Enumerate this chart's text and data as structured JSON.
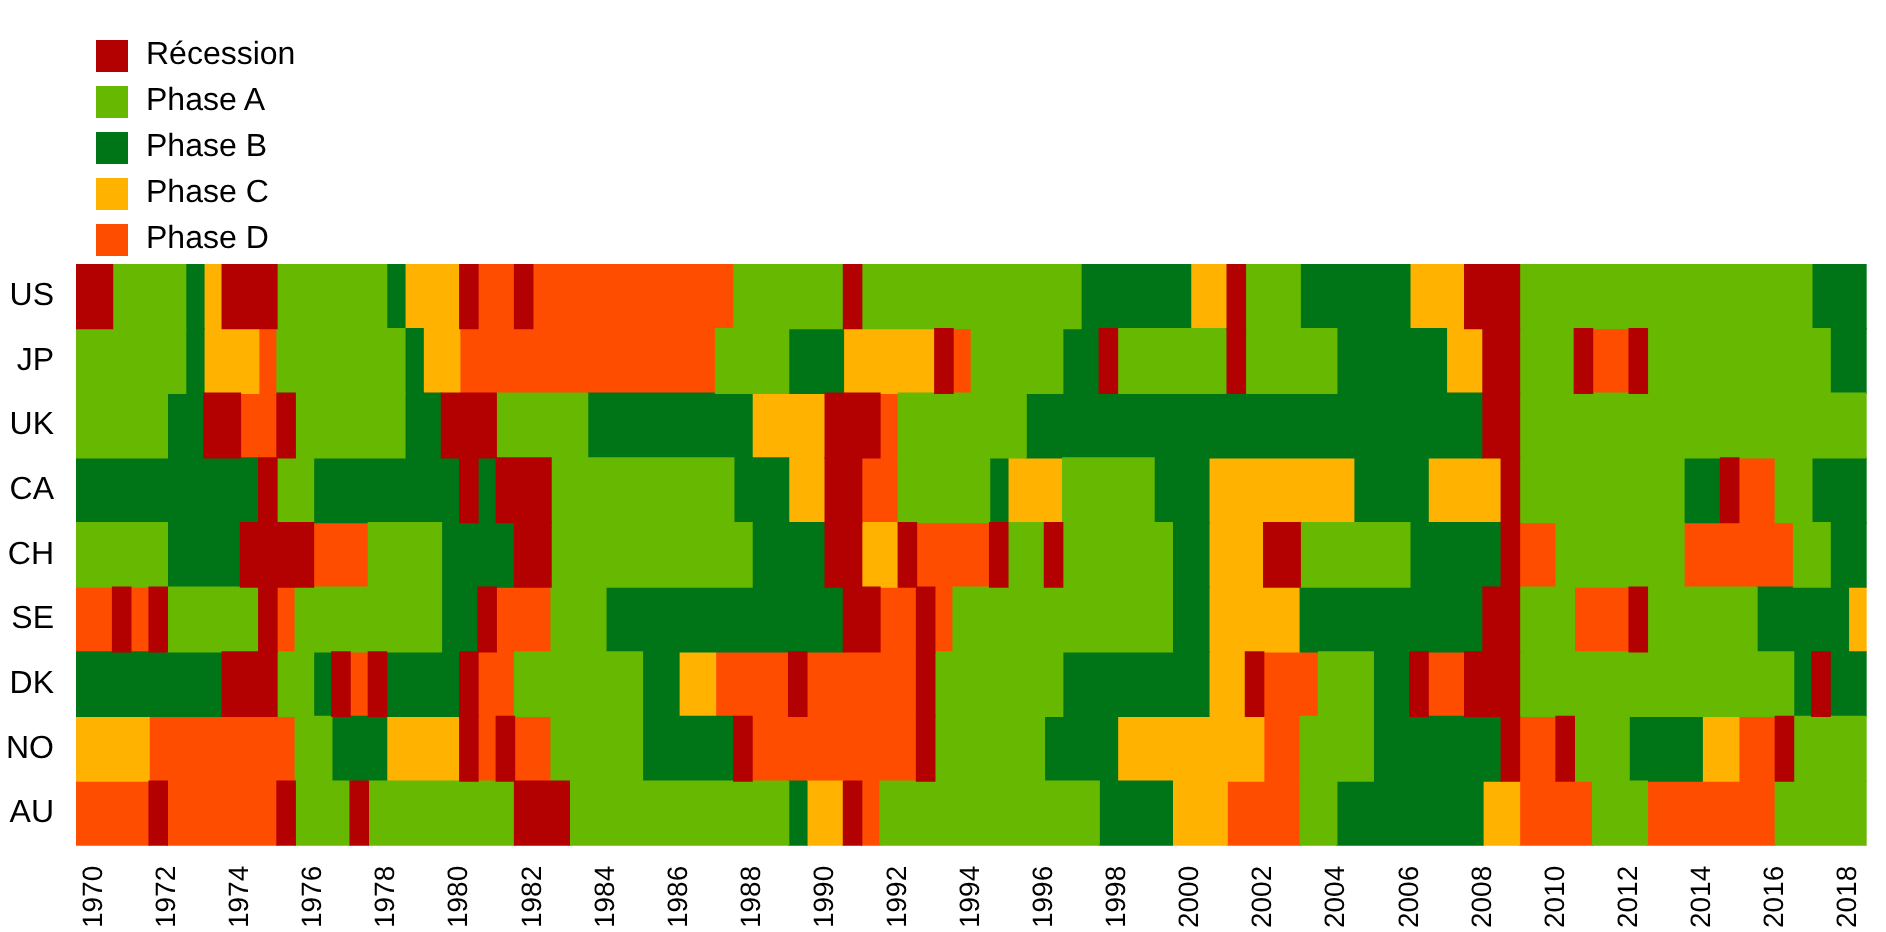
{
  "chart_data": {
    "type": "bar",
    "orientation": "horizontal",
    "legend": "top left",
    "categories": [
      "US",
      "JP",
      "UK",
      "CA",
      "CH",
      "SE",
      "DK",
      "NO",
      "AU"
    ],
    "xlim": [
      1969.5,
      2018.5
    ],
    "xticks": [
      1970,
      1972,
      1974,
      1976,
      1978,
      1980,
      1982,
      1984,
      1986,
      1988,
      1990,
      1992,
      1994,
      1996,
      1998,
      2000,
      2002,
      2004,
      2006,
      2008,
      2010,
      2012,
      2014,
      2016,
      2018
    ],
    "series": [
      {
        "name": "Récession",
        "color": "#b30000",
        "base": [
          1969.5,
          1993,
          1973,
          1974.5,
          1974,
          1970.5,
          1973.5,
          1980,
          1971.5
        ],
        "values": [
          1,
          0.5,
          1,
          0.5,
          2,
          0.5,
          1.5,
          0.5,
          0.5
        ]
      },
      {
        "color": "#b30000",
        "base": [
          1973.5,
          1997.5,
          1975,
          1980,
          1981.5,
          1971.5,
          1976.5,
          1981,
          1975
        ],
        "values": [
          1.5,
          0.5,
          0.5,
          0.5,
          1,
          0.5,
          0.5,
          0.5,
          0.5
        ]
      },
      {
        "color": "#b30000",
        "base": [
          1980,
          2001,
          1979.5,
          1981,
          1990,
          1974.5,
          1977.5,
          1987.5,
          1977
        ],
        "values": [
          0.5,
          0.5,
          1.5,
          1.5,
          1,
          0.5,
          0.5,
          0.5,
          0.5
        ]
      },
      {
        "color": "#b30000",
        "base": [
          1981.5,
          2008,
          1990,
          1990,
          1992,
          1980.5,
          1980,
          1992.5,
          1981.5
        ],
        "values": [
          0.5,
          1,
          1.5,
          1,
          0.5,
          0.5,
          0.5,
          0.5,
          1.5
        ]
      },
      {
        "color": "#b30000",
        "base": [
          1990.5,
          2010.5,
          2008,
          2008.5,
          1994.5,
          1990.5,
          1989,
          2008.5,
          1990.5
        ],
        "values": [
          0.5,
          0.5,
          1,
          0.5,
          0.5,
          1,
          0.5,
          0.5,
          0.5
        ]
      },
      {
        "color": "#b30000",
        "base": [
          2001,
          2012,
          null,
          2014.5,
          1996,
          1992.5,
          1992.5,
          2010,
          null
        ],
        "values": [
          0.5,
          0.5,
          null,
          0.5,
          0.5,
          0.5,
          0.5,
          0.5,
          null
        ]
      },
      {
        "color": "#b30000",
        "base": [
          2007.5,
          null,
          null,
          null,
          2002,
          2008,
          2001.5,
          2016,
          null
        ],
        "values": [
          1.5,
          null,
          null,
          null,
          1,
          1,
          0.5,
          0.5,
          null
        ]
      },
      {
        "color": "#b30000",
        "base": [
          null,
          null,
          null,
          null,
          2008.5,
          2012,
          2006,
          null,
          null
        ],
        "values": [
          null,
          null,
          null,
          null,
          0.5,
          0.5,
          0.5,
          null,
          null
        ]
      },
      {
        "color": "#b30000",
        "base": [
          null,
          null,
          null,
          null,
          null,
          null,
          2007.5,
          null,
          null
        ],
        "values": [
          null,
          null,
          null,
          null,
          null,
          null,
          1.5,
          null,
          null
        ]
      },
      {
        "color": "#b30000",
        "base": [
          null,
          null,
          null,
          null,
          null,
          null,
          2017,
          null,
          null
        ],
        "values": [
          null,
          null,
          null,
          null,
          null,
          null,
          0.5,
          null,
          null
        ]
      },
      {
        "name": "Phase A",
        "color": "#66b800",
        "base": [
          1970.5,
          1969.5,
          1969.5,
          1975,
          1969.5,
          1972,
          1975,
          1975.5,
          1975.5
        ],
        "values": [
          2,
          3,
          2.5,
          1,
          2.5,
          2.5,
          1,
          1,
          1.5
        ]
      },
      {
        "color": "#66b800",
        "base": [
          1975,
          1975,
          1975.5,
          1982.5,
          1977.5,
          1975.5,
          1981.5,
          1982.5,
          1977.5
        ],
        "values": [
          3,
          3.5,
          3,
          5,
          2,
          4,
          3.5,
          2.5,
          4
        ]
      },
      {
        "color": "#66b800",
        "base": [
          1987.5,
          1987,
          1981,
          1992,
          1982.5,
          1982.5,
          1993,
          1993,
          1983
        ],
        "values": [
          3,
          2,
          2.5,
          2.5,
          5.5,
          1.5,
          3.5,
          3,
          6
        ]
      },
      {
        "color": "#66b800",
        "base": [
          1991,
          1994,
          1992,
          1996.5,
          1995,
          1993.5,
          2003.5,
          2003,
          1991.5
        ],
        "values": [
          6,
          2.5,
          3.5,
          2.5,
          1,
          6,
          1.5,
          2,
          6
        ]
      },
      {
        "color": "#66b800",
        "base": [
          2001.5,
          1998,
          2009,
          2009,
          1996.5,
          2009,
          2009,
          2010.5,
          2003
        ],
        "values": [
          1.5,
          3,
          9.5,
          4.5,
          3,
          1.5,
          7.5,
          1.5,
          1
        ]
      },
      {
        "color": "#66b800",
        "base": [
          2009,
          2001.5,
          null,
          2016,
          2003,
          2012.5,
          null,
          2016.5,
          2011
        ],
        "values": [
          8,
          2.5,
          null,
          1,
          3,
          3,
          null,
          2,
          1.5
        ]
      },
      {
        "color": "#66b800",
        "base": [
          null,
          2009,
          null,
          null,
          2010,
          null,
          null,
          null,
          2016
        ],
        "values": [
          null,
          1.5,
          null,
          null,
          3.5,
          null,
          null,
          null,
          2.5
        ]
      },
      {
        "color": "#66b800",
        "base": [
          null,
          2012.5,
          null,
          null,
          2016.5,
          null,
          null,
          null,
          null
        ],
        "values": [
          null,
          5,
          null,
          null,
          1,
          null,
          null,
          null,
          null
        ]
      },
      {
        "name": "Phase B",
        "color": "#007518",
        "base": [
          1972.5,
          1972.5,
          1972,
          1969.5,
          1972,
          1979.5,
          1969.5,
          1976.5,
          1989
        ],
        "values": [
          0.5,
          0.5,
          1,
          5,
          2,
          1,
          4,
          1.5,
          0.5
        ]
      },
      {
        "color": "#007518",
        "base": [
          1978,
          1978.5,
          1978.5,
          1976,
          1979.5,
          1984,
          1976,
          1985,
          1997.5
        ],
        "values": [
          0.5,
          0.5,
          1,
          4,
          2,
          6.5,
          0.5,
          2.5,
          2
        ]
      },
      {
        "color": "#007518",
        "base": [
          1997,
          1989,
          1983.5,
          1980.5,
          1988,
          1999.5,
          1978,
          1996,
          2004
        ],
        "values": [
          3,
          1.5,
          4.5,
          0.5,
          2,
          1,
          2,
          2,
          4
        ]
      },
      {
        "color": "#007518",
        "base": [
          2003,
          1996.5,
          1995.5,
          1987.5,
          1999.5,
          2003,
          1985,
          2005,
          null
        ],
        "values": [
          3,
          1,
          12.5,
          1.5,
          1,
          5,
          1,
          3.5,
          null
        ]
      },
      {
        "color": "#007518",
        "base": [
          2017,
          2004,
          null,
          1994.5,
          2006,
          2015.5,
          1996.5,
          2012,
          null
        ],
        "values": [
          1.5,
          3,
          null,
          0.5,
          2.5,
          2.5,
          4,
          2,
          null
        ]
      },
      {
        "color": "#007518",
        "base": [
          null,
          2017.5,
          null,
          1999,
          2017.5,
          null,
          2005,
          null,
          null
        ],
        "values": [
          null,
          1,
          null,
          1.5,
          1,
          null,
          1,
          null,
          null
        ]
      },
      {
        "color": "#007518",
        "base": [
          null,
          null,
          null,
          2004.5,
          null,
          null,
          2016.5,
          null,
          null
        ],
        "values": [
          null,
          null,
          null,
          2,
          null,
          null,
          0.5,
          null,
          null
        ]
      },
      {
        "color": "#007518",
        "base": [
          null,
          null,
          null,
          2013.5,
          null,
          null,
          2017.5,
          null,
          null
        ],
        "values": [
          null,
          null,
          null,
          1,
          null,
          null,
          1,
          null,
          null
        ]
      },
      {
        "color": "#007518",
        "base": [
          null,
          null,
          null,
          2017,
          null,
          null,
          null,
          null,
          null
        ],
        "values": [
          null,
          null,
          null,
          1.5,
          null,
          null,
          null,
          null,
          null
        ]
      },
      {
        "name": "Phase C",
        "color": "#ffb300",
        "base": [
          1973,
          1973,
          1988,
          1989,
          1991,
          2000.5,
          1986,
          1969.5,
          1989.5
        ],
        "values": [
          0.5,
          1.5,
          2,
          1,
          1,
          2.5,
          1,
          2,
          1
        ]
      },
      {
        "color": "#ffb300",
        "base": [
          1978.5,
          1979,
          null,
          1995,
          2000.5,
          2018,
          2000.5,
          1978,
          1999.5
        ],
        "values": [
          1.5,
          1,
          null,
          1.5,
          1.5,
          0.5,
          1,
          2,
          1.5
        ]
      },
      {
        "color": "#ffb300",
        "base": [
          2000,
          1990.5,
          null,
          2000.5,
          null,
          null,
          null,
          1998,
          2008
        ],
        "values": [
          1,
          2.5,
          null,
          4,
          null,
          null,
          null,
          4,
          1
        ]
      },
      {
        "color": "#ffb300",
        "base": [
          2006,
          2007,
          null,
          2006.5,
          null,
          null,
          null,
          2014,
          null
        ],
        "values": [
          1.5,
          1,
          null,
          2,
          null,
          null,
          null,
          1,
          null
        ]
      },
      {
        "name": "Phase D",
        "color": "#ff4d00",
        "base": [
          1980.5,
          1974.5,
          1974,
          1991,
          1976,
          1969.5,
          1977,
          1971.5,
          1969.5
        ],
        "values": [
          1,
          0.5,
          1,
          1,
          1.5,
          1,
          0.5,
          4,
          2
        ]
      },
      {
        "color": "#ff4d00",
        "base": [
          1982,
          1980,
          1991.5,
          2015,
          1992.5,
          1971,
          1980.5,
          1980.5,
          1972
        ],
        "values": [
          5.5,
          7,
          0.5,
          1,
          2,
          0.5,
          1,
          0.5,
          3
        ]
      },
      {
        "color": "#ff4d00",
        "base": [
          null,
          1993.5,
          null,
          null,
          2009,
          1975,
          1987,
          1981.5,
          1991
        ],
        "values": [
          null,
          0.5,
          null,
          null,
          1,
          0.5,
          2,
          1,
          0.5
        ]
      },
      {
        "color": "#ff4d00",
        "base": [
          null,
          2011,
          null,
          null,
          2013.5,
          1981,
          1989.5,
          1988,
          2001
        ],
        "values": [
          null,
          1,
          null,
          null,
          3,
          1.5,
          3,
          4.5,
          2
        ]
      },
      {
        "color": "#ff4d00",
        "base": [
          null,
          null,
          null,
          null,
          null,
          1991.5,
          2002,
          2002,
          2009
        ],
        "values": [
          null,
          null,
          null,
          null,
          null,
          1,
          1.5,
          1,
          2
        ]
      },
      {
        "color": "#ff4d00",
        "base": [
          null,
          null,
          null,
          null,
          null,
          1993,
          2006.5,
          2009,
          2012.5
        ],
        "values": [
          null,
          null,
          null,
          null,
          null,
          0.5,
          1,
          1,
          3.5
        ]
      },
      {
        "color": "#ff4d00",
        "base": [
          null,
          null,
          null,
          null,
          null,
          2010.5,
          null,
          2015,
          null
        ],
        "values": [
          null,
          null,
          null,
          null,
          null,
          1.5,
          null,
          1,
          null
        ]
      }
    ]
  }
}
